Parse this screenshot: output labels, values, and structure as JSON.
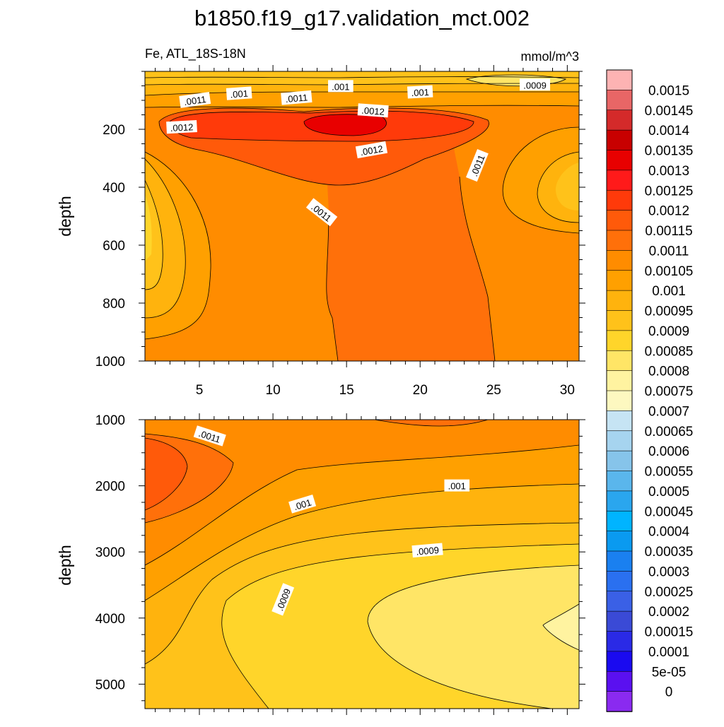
{
  "chart_data": {
    "type": "contour",
    "title": "b1850.f19_g17.validation_mct.002",
    "variable_label": "Fe, ATL_18S-18N",
    "units_label": "mmol/m^3",
    "colorbar": {
      "labels": [
        "0.0015",
        "0.00145",
        "0.0014",
        "0.00135",
        "0.0013",
        "0.00125",
        "0.0012",
        "0.00115",
        "0.0011",
        "0.00105",
        "0.001",
        "0.00095",
        "0.0009",
        "0.00085",
        "0.0008",
        "0.00075",
        "0.0007",
        "0.00065",
        "0.0006",
        "0.00055",
        "0.0005",
        "0.00045",
        "0.0004",
        "0.00035",
        "0.0003",
        "0.00025",
        "0.0002",
        "0.00015",
        "0.0001",
        "5e-05",
        "0"
      ],
      "colors": [
        "#fdb3b3",
        "#e86666",
        "#d42a2a",
        "#c80000",
        "#e80000",
        "#ff1a1a",
        "#ff3a0a",
        "#ff5a0a",
        "#ff700a",
        "#ff8c00",
        "#ffa000",
        "#ffb30d",
        "#ffc21a",
        "#ffd52a",
        "#ffe566",
        "#fff3a0",
        "#fdf8c0",
        "#c6e4f4",
        "#a6d4ef",
        "#86c4ea",
        "#5ab6ec",
        "#2aa6ee",
        "#00b4ff",
        "#0a9af0",
        "#1a80f0",
        "#2a70f0",
        "#3a60e6",
        "#3a4ad6",
        "#2a2ae6",
        "#1a0af0",
        "#5a10f0",
        "#8a2af0"
      ]
    },
    "panels": [
      {
        "name": "upper",
        "ylabel": "depth",
        "x_range": [
          1.3,
          30.8
        ],
        "y_range": [
          0,
          1000
        ],
        "y_inverted": true,
        "x_ticks": [
          5,
          10,
          15,
          20,
          25,
          30
        ],
        "x_tick_labels": [
          "5",
          "10",
          "15",
          "20",
          "25",
          "30"
        ],
        "y_ticks": [
          200,
          400,
          600,
          800,
          1000
        ],
        "y_tick_labels": [
          "200",
          "400",
          "600",
          "800",
          "1000"
        ],
        "contour_labels": [
          {
            "text": ".0011",
            "x": 4.7,
            "y": 100,
            "angle": -8
          },
          {
            "text": ".001",
            "x": 7.7,
            "y": 77,
            "angle": -4
          },
          {
            "text": ".0011",
            "x": 11.6,
            "y": 92,
            "angle": -5
          },
          {
            "text": ".001",
            "x": 14.6,
            "y": 52,
            "angle": 0
          },
          {
            "text": ".0012",
            "x": 3.8,
            "y": 193,
            "angle": -3
          },
          {
            "text": ".0012",
            "x": 16.8,
            "y": 136,
            "angle": 4
          },
          {
            "text": ".001",
            "x": 20.0,
            "y": 72,
            "angle": -3
          },
          {
            "text": ".0009",
            "x": 27.8,
            "y": 47,
            "angle": 0
          },
          {
            "text": ".0012",
            "x": 16.7,
            "y": 272,
            "angle": -10
          },
          {
            "text": ".0011",
            "x": 23.9,
            "y": 325,
            "angle": -68
          },
          {
            "text": ".0011",
            "x": 13.3,
            "y": 487,
            "angle": 38
          }
        ]
      },
      {
        "name": "lower",
        "ylabel": "depth",
        "x_range": [
          1.3,
          30.8
        ],
        "y_range": [
          1000,
          5370
        ],
        "y_inverted": true,
        "x_ticks": [
          5,
          10,
          15,
          20,
          25,
          30
        ],
        "x_tick_labels": [],
        "y_ticks": [
          1000,
          2000,
          3000,
          4000,
          5000
        ],
        "y_tick_labels": [
          "1000",
          "2000",
          "3000",
          "4000",
          "5000"
        ],
        "contour_labels": [
          {
            "text": ".0011",
            "x": 5.7,
            "y": 1250,
            "angle": 18
          },
          {
            "text": ".001",
            "x": 12.0,
            "y": 2280,
            "angle": -17
          },
          {
            "text": ".001",
            "x": 22.5,
            "y": 2000,
            "angle": 0
          },
          {
            "text": ".0009",
            "x": 20.5,
            "y": 2980,
            "angle": -5
          },
          {
            "text": ".0009",
            "x": 10.7,
            "y": 3720,
            "angle": -68
          }
        ]
      }
    ]
  }
}
